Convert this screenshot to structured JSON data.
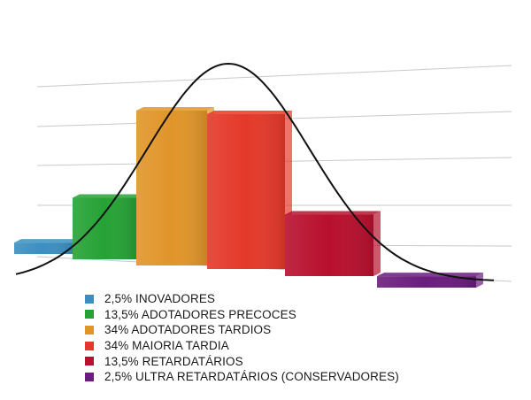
{
  "chart_data": {
    "type": "bar",
    "title": "",
    "xlabel": "",
    "ylabel": "",
    "grid": true,
    "legend_position": "bottom-left",
    "has_bell_curve": true,
    "ylim": [
      0,
      40
    ],
    "categories": [
      "INOVADORES",
      "ADOTADORES PRECOCES",
      "ADOTADORES TARDIOS",
      "MAIORIA TARDIA",
      "RETARDATÁRIOS",
      "ULTRA RETARDATÁRIOS (CONSERVADORES)"
    ],
    "values": [
      2.5,
      13.5,
      34,
      34,
      13.5,
      2.5
    ],
    "legend": [
      {
        "label": "2,5% INOVADORES",
        "color": "#3a8fc1"
      },
      {
        "label": "13,5% ADOTADORES PRECOCES",
        "color": "#26a235"
      },
      {
        "label": "34% ADOTADORES TARDIOS",
        "color": "#e0952a"
      },
      {
        "label": "34% MAIORIA TARDIA",
        "color": "#e4392a"
      },
      {
        "label": "13,5% RETARDATÁRIOS",
        "color": "#b8102e"
      },
      {
        "label": "2,5% ULTRA RETARDATÁRIOS (CONSERVADORES)",
        "color": "#6a1d7d"
      }
    ]
  }
}
